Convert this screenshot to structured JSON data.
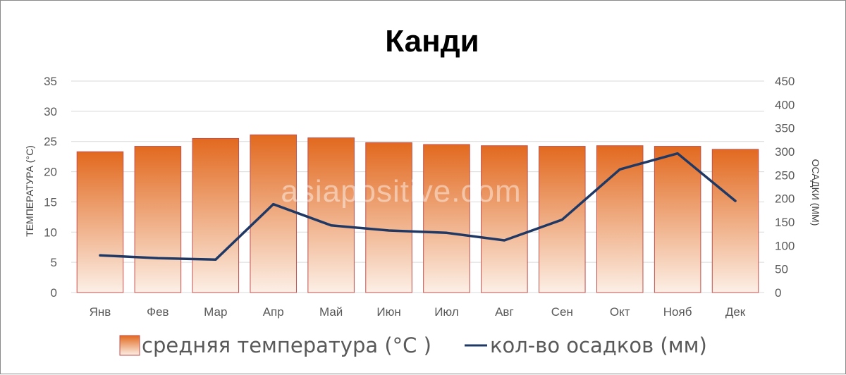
{
  "chart_data": {
    "type": "bar+line",
    "title": "Канди",
    "watermark": "asiapositive.com",
    "categories": [
      "Янв",
      "Фев",
      "Мар",
      "Апр",
      "Май",
      "Июн",
      "Июл",
      "Авг",
      "Сен",
      "Окт",
      "Нояб",
      "Дек"
    ],
    "series": [
      {
        "name": "средняя температура (°C )",
        "type": "bar",
        "axis": "left",
        "values": [
          23.3,
          24.2,
          25.5,
          26.1,
          25.6,
          24.8,
          24.5,
          24.3,
          24.2,
          24.3,
          24.2,
          23.7
        ]
      },
      {
        "name": "кол-во осадков (мм)",
        "type": "line",
        "axis": "right",
        "values": [
          79,
          73,
          70,
          188,
          143,
          132,
          127,
          111,
          155,
          262,
          296,
          195
        ]
      }
    ],
    "y_left": {
      "label": "ТЕМПЕРАТУРА (°C)",
      "min": 0,
      "max": 35,
      "ticks": [
        "0",
        "5",
        "10",
        "15",
        "20",
        "25",
        "30",
        "35"
      ]
    },
    "y_right": {
      "label": "ОСАДКИ (ММ)",
      "min": 0,
      "max": 450,
      "ticks": [
        "0",
        "50",
        "100",
        "150",
        "200",
        "250",
        "300",
        "350",
        "400",
        "450"
      ]
    },
    "grid": true,
    "legend": "bottom",
    "colors": {
      "bar_top": "#e2691f",
      "bar_bottom": "#fcefe6",
      "bar_border": "#c0504d",
      "line": "#1f3864",
      "grid": "#d9d9d9"
    }
  }
}
